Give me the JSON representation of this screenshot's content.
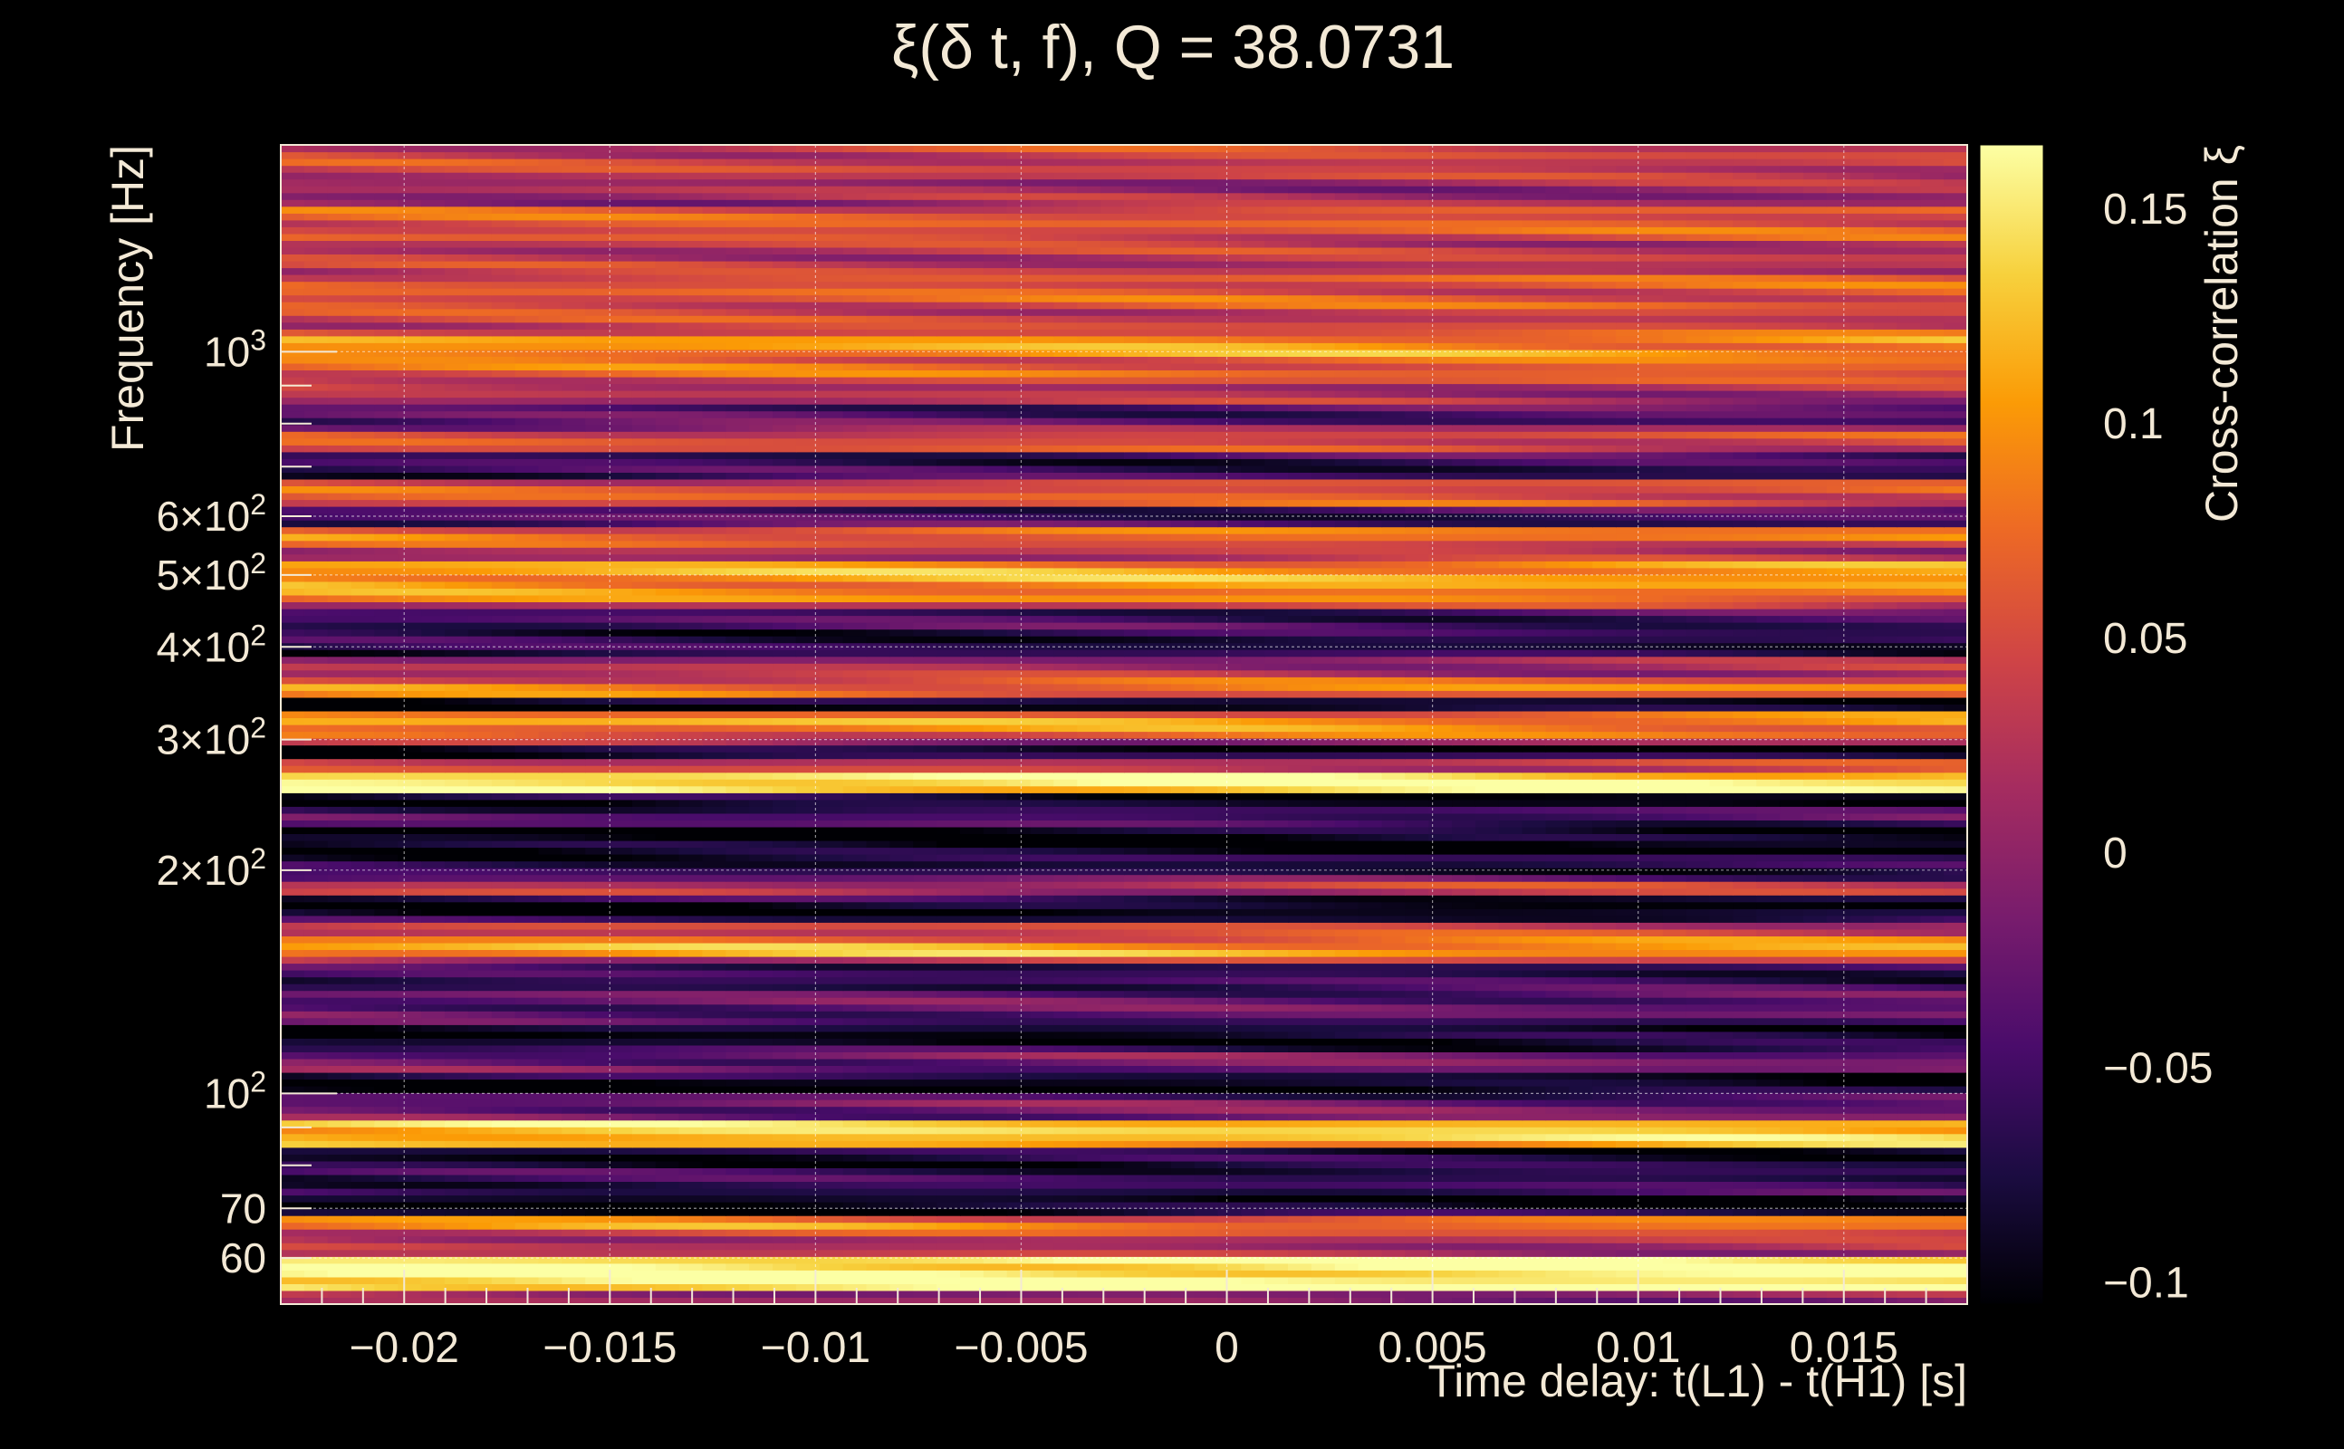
{
  "chart_data": {
    "type": "heatmap",
    "title": "ξ(δ t, f), Q = 38.0731",
    "xlabel": "Time delay: t(L1) - t(H1) [s]",
    "ylabel": "Frequency [Hz]",
    "colorbar_label": "Cross-correlation ξ",
    "xlim": [
      -0.023,
      0.018
    ],
    "ylim": [
      52,
      1900
    ],
    "y_scale": "log",
    "clim": [
      -0.105,
      0.165
    ],
    "grid": true,
    "x_ticks": [
      {
        "value": -0.02,
        "label": "−0.02"
      },
      {
        "value": -0.015,
        "label": "−0.015"
      },
      {
        "value": -0.01,
        "label": "−0.01"
      },
      {
        "value": -0.005,
        "label": "−0.005"
      },
      {
        "value": 0,
        "label": "0"
      },
      {
        "value": 0.005,
        "label": "0.005"
      },
      {
        "value": 0.01,
        "label": "0.01"
      },
      {
        "value": 0.015,
        "label": "0.015"
      }
    ],
    "y_ticks": [
      {
        "value": 60,
        "label": "60",
        "exp": ""
      },
      {
        "value": 70,
        "label": "70",
        "exp": ""
      },
      {
        "value": 100,
        "label": "10",
        "exp": "2"
      },
      {
        "value": 200,
        "label": "2×10",
        "exp": "2"
      },
      {
        "value": 300,
        "label": "3×10",
        "exp": "2"
      },
      {
        "value": 400,
        "label": "4×10",
        "exp": "2"
      },
      {
        "value": 500,
        "label": "5×10",
        "exp": "2"
      },
      {
        "value": 600,
        "label": "6×10",
        "exp": "2"
      },
      {
        "value": 1000,
        "label": "10",
        "exp": "3"
      }
    ],
    "colorbar_ticks": [
      {
        "value": 0.15,
        "label": "0.15"
      },
      {
        "value": 0.1,
        "label": "0.1"
      },
      {
        "value": 0.05,
        "label": "0.05"
      },
      {
        "value": 0,
        "label": "0"
      },
      {
        "value": -0.05,
        "label": "−0.05"
      },
      {
        "value": -0.1,
        "label": "−0.1"
      }
    ],
    "colormap": [
      "#000004",
      "#1b0c41",
      "#4a0c6b",
      "#781c6d",
      "#a52c60",
      "#cf4446",
      "#ed6925",
      "#fb9b06",
      "#f7d13d",
      "#fcffa4"
    ],
    "highlight_bands": [
      {
        "freq": 58,
        "value": 0.16
      },
      {
        "freq": 63,
        "value": 0.02
      },
      {
        "freq": 67,
        "value": 0.09
      },
      {
        "freq": 70,
        "value": -0.1
      },
      {
        "freq": 76,
        "value": -0.06
      },
      {
        "freq": 82,
        "value": -0.08
      },
      {
        "freq": 88,
        "value": 0.13
      },
      {
        "freq": 97,
        "value": -0.02
      },
      {
        "freq": 102,
        "value": -0.1
      },
      {
        "freq": 110,
        "value": -0.02
      },
      {
        "freq": 120,
        "value": -0.09
      },
      {
        "freq": 130,
        "value": -0.03
      },
      {
        "freq": 145,
        "value": -0.06
      },
      {
        "freq": 158,
        "value": 0.11
      },
      {
        "freq": 165,
        "value": 0.04
      },
      {
        "freq": 178,
        "value": -0.1
      },
      {
        "freq": 190,
        "value": 0.03
      },
      {
        "freq": 200,
        "value": -0.07
      },
      {
        "freq": 222,
        "value": -0.1
      },
      {
        "freq": 238,
        "value": -0.04
      },
      {
        "freq": 247,
        "value": -0.1
      },
      {
        "freq": 262,
        "value": 0.16
      },
      {
        "freq": 278,
        "value": 0.04
      },
      {
        "freq": 290,
        "value": -0.1
      },
      {
        "freq": 305,
        "value": 0.07
      },
      {
        "freq": 318,
        "value": 0.11
      },
      {
        "freq": 335,
        "value": -0.1
      },
      {
        "freq": 350,
        "value": 0.09
      },
      {
        "freq": 372,
        "value": 0.02
      },
      {
        "freq": 400,
        "value": -0.07
      },
      {
        "freq": 440,
        "value": -0.05
      },
      {
        "freq": 470,
        "value": 0.09
      },
      {
        "freq": 500,
        "value": 0.11
      },
      {
        "freq": 540,
        "value": 0.02
      },
      {
        "freq": 560,
        "value": 0.08
      },
      {
        "freq": 600,
        "value": -0.05
      },
      {
        "freq": 640,
        "value": 0.06
      },
      {
        "freq": 700,
        "value": -0.06
      },
      {
        "freq": 760,
        "value": 0.05
      },
      {
        "freq": 820,
        "value": -0.04
      },
      {
        "freq": 880,
        "value": 0.02
      },
      {
        "freq": 950,
        "value": 0.07
      },
      {
        "freq": 1020,
        "value": 0.1
      },
      {
        "freq": 1100,
        "value": 0.04
      },
      {
        "freq": 1200,
        "value": 0.06
      },
      {
        "freq": 1350,
        "value": 0.03
      },
      {
        "freq": 1500,
        "value": 0.06
      },
      {
        "freq": 1650,
        "value": 0.01
      },
      {
        "freq": 1800,
        "value": 0.04
      }
    ]
  }
}
